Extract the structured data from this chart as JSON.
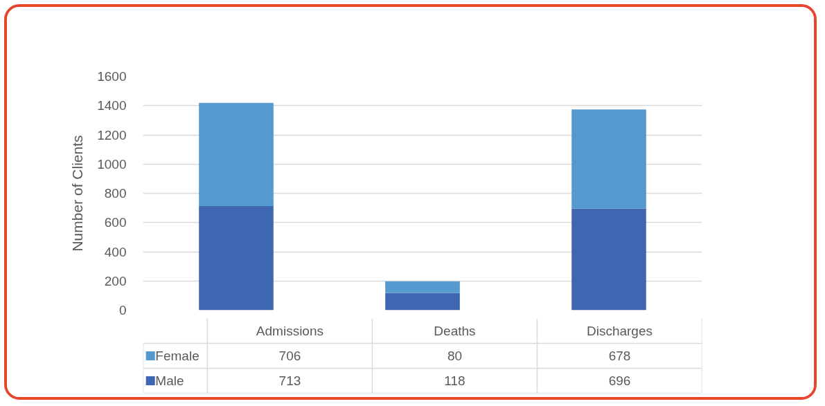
{
  "chart_data": {
    "type": "bar",
    "stacked": true,
    "ylabel": "Number of Clients",
    "categories": [
      "Admissions",
      "Deaths",
      "Discharges"
    ],
    "series": [
      {
        "name": "Male",
        "color": "#3f67b1",
        "values": [
          713,
          118,
          696
        ]
      },
      {
        "name": "Female",
        "color": "#5499cf",
        "values": [
          706,
          80,
          678
        ]
      }
    ],
    "ylim": [
      0,
      1600
    ],
    "yticks": [
      0,
      200,
      400,
      600,
      800,
      1000,
      1200,
      1400,
      1600
    ],
    "grid": "y",
    "data_labels": true,
    "legend": "bottom left"
  }
}
